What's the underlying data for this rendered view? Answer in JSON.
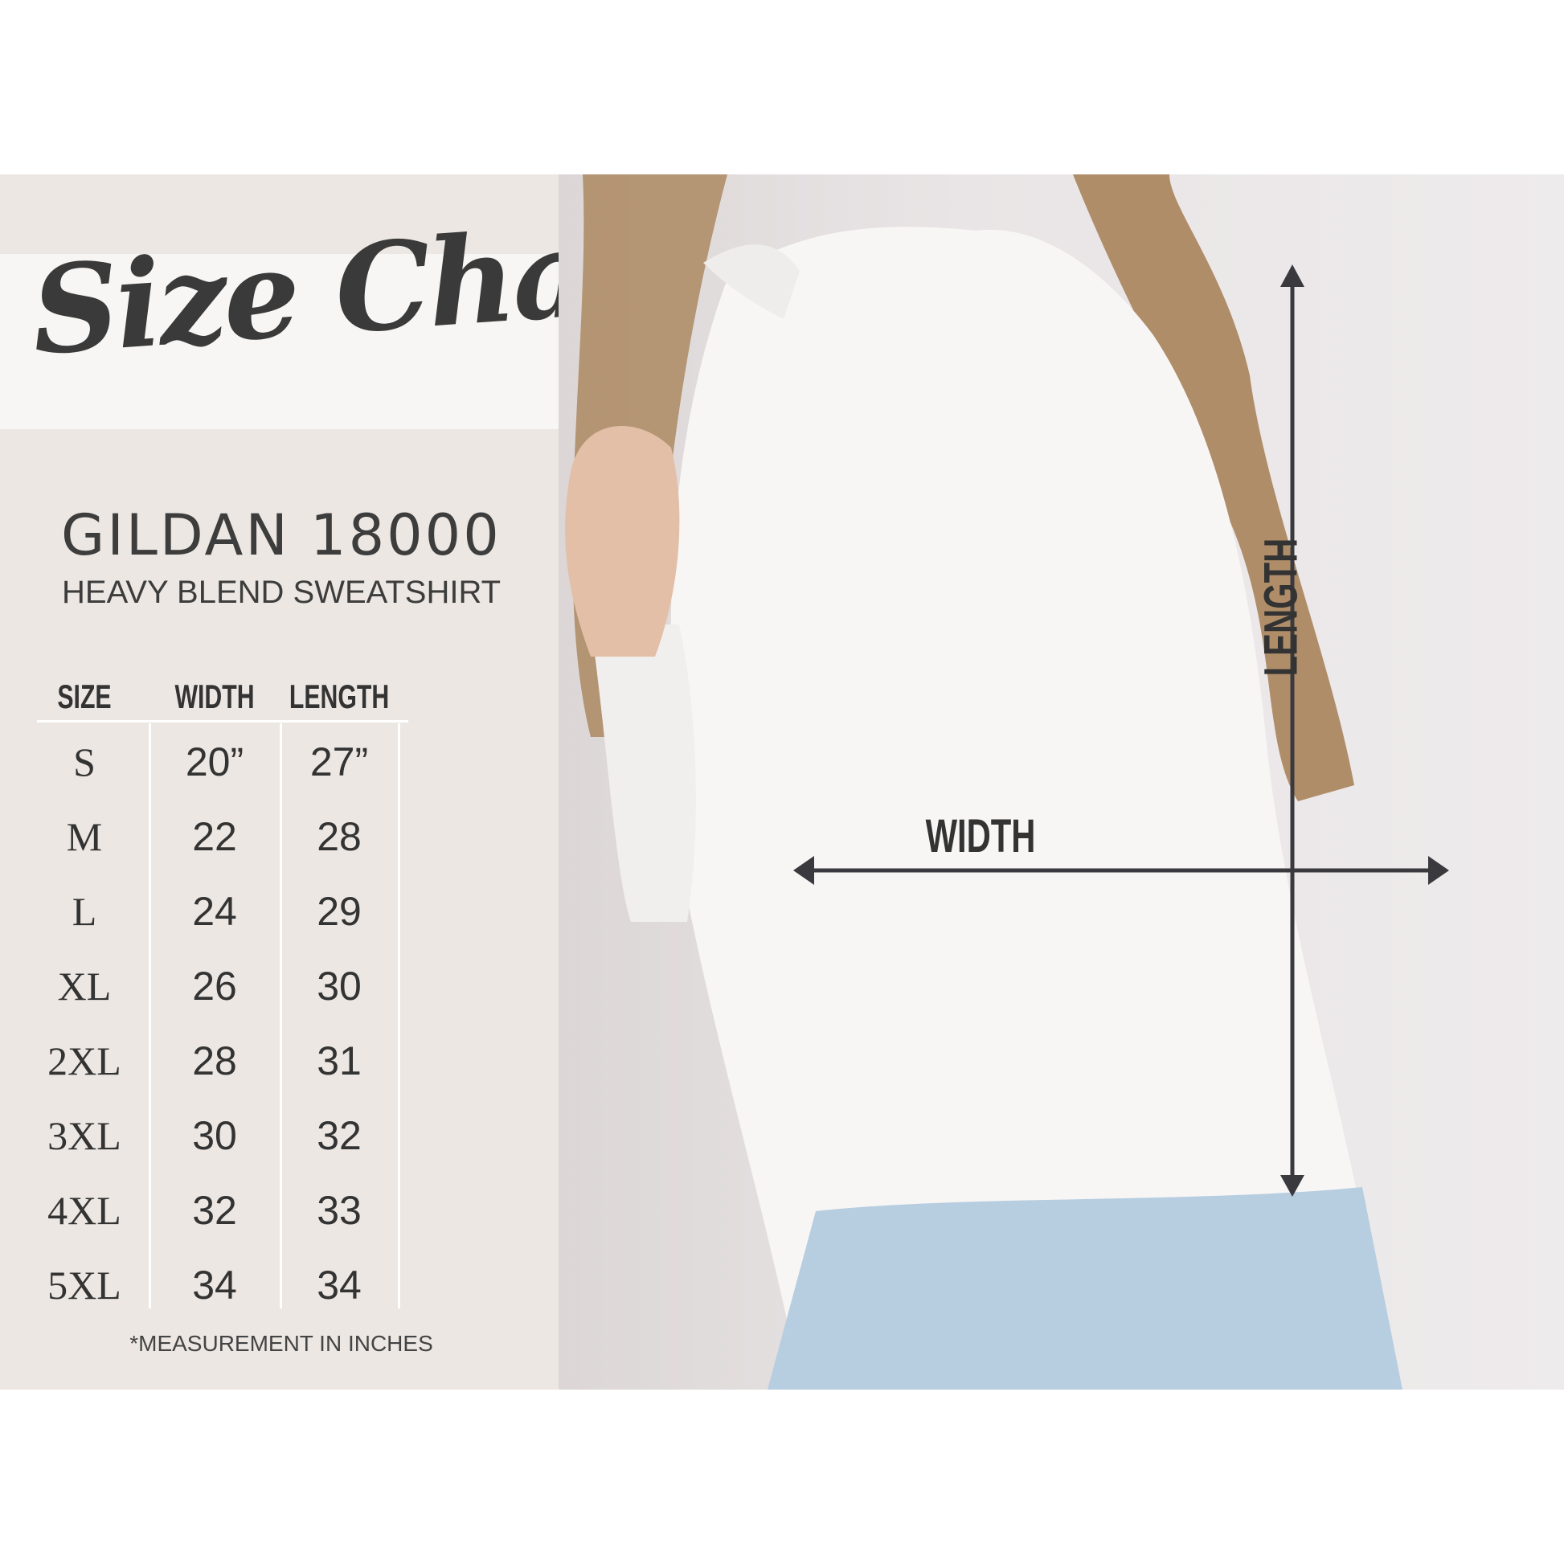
{
  "title": "Size Chart",
  "product": {
    "brand_model": "GILDAN 18000",
    "description": "HEAVY BLEND SWEATSHIRT"
  },
  "table": {
    "headers": [
      "SIZE",
      "WIDTH",
      "LENGTH"
    ],
    "rows": [
      [
        "S",
        "20”",
        "27”"
      ],
      [
        "M",
        "22",
        "28"
      ],
      [
        "L",
        "24",
        "29"
      ],
      [
        "XL",
        "26",
        "30"
      ],
      [
        "2XL",
        "28",
        "31"
      ],
      [
        "3XL",
        "30",
        "32"
      ],
      [
        "4XL",
        "32",
        "33"
      ],
      [
        "5XL",
        "34",
        "34"
      ]
    ]
  },
  "footnote": "*MEASUREMENT IN INCHES",
  "photo": {
    "width_label": "WIDTH",
    "length_label": "LENGTH"
  },
  "colors": {
    "panel": "#ece7e2",
    "text": "#3b3b3b",
    "arrow": "#3a3a3e"
  }
}
